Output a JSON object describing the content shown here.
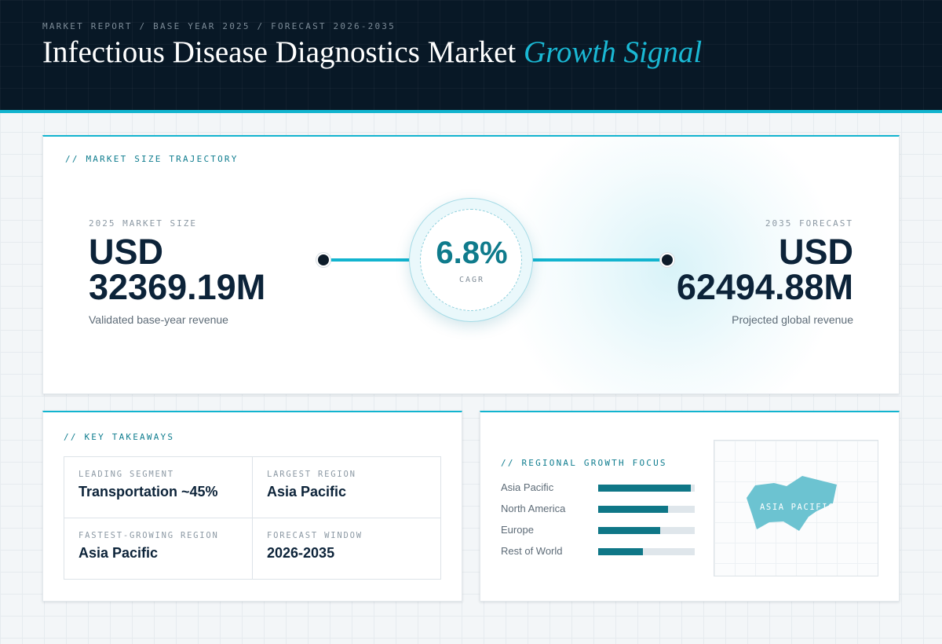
{
  "header": {
    "breadcrumb": "MARKET REPORT / BASE YEAR 2025 / FORECAST 2026-2035",
    "title_main": "Infectious Disease Diagnostics Market",
    "title_accent": "Growth Signal"
  },
  "trajectory": {
    "label": "// MARKET SIZE TRAJECTORY",
    "base": {
      "kicker": "2025 MARKET SIZE",
      "currency": "USD",
      "value": "32369.19M",
      "sub": "Validated base-year revenue"
    },
    "cagr": {
      "value": "6.8%",
      "label": "CAGR"
    },
    "forecast": {
      "kicker": "2035 FORECAST",
      "currency": "USD",
      "value": "62494.88M",
      "sub": "Projected global revenue"
    }
  },
  "takeaways": {
    "label": "// KEY TAKEAWAYS",
    "items": [
      {
        "key": "LEADING SEGMENT",
        "value": "Transportation ~45%"
      },
      {
        "key": "LARGEST REGION",
        "value": "Asia Pacific"
      },
      {
        "key": "FASTEST-GROWING REGION",
        "value": "Asia Pacific"
      },
      {
        "key": "FORECAST WINDOW",
        "value": "2026-2035"
      }
    ]
  },
  "regional": {
    "label": "// REGIONAL GROWTH FOCUS",
    "bars": [
      {
        "name": "Asia Pacific",
        "share": 0.96
      },
      {
        "name": "North America",
        "share": 0.72
      },
      {
        "name": "Europe",
        "share": 0.64
      },
      {
        "name": "Rest of World",
        "share": 0.46
      }
    ],
    "map_label": "ASIA PACIFIC"
  },
  "colors": {
    "accent": "#12b4cf",
    "header_bg": "#081826",
    "bar_fill": "#0f7787",
    "map_shape": "#6cc3d1"
  }
}
